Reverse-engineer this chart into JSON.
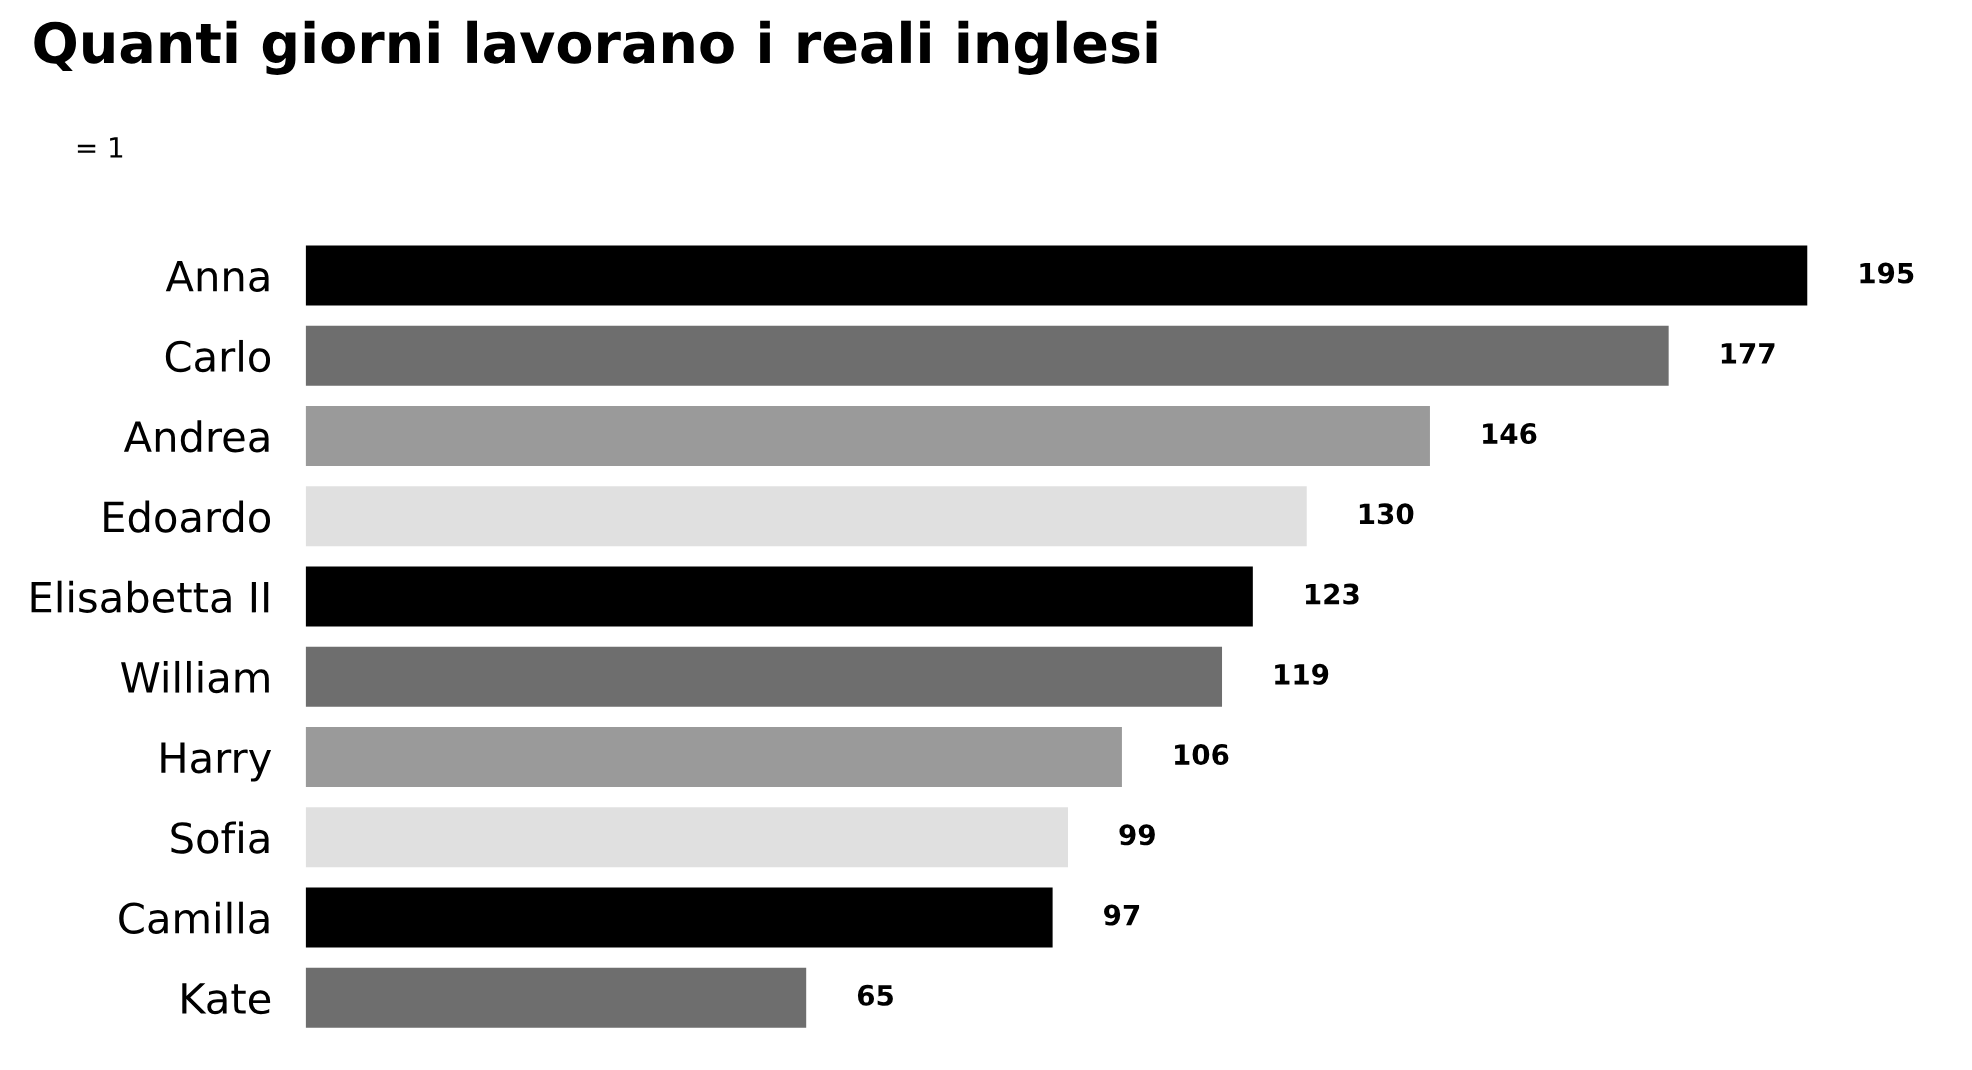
{
  "chart_data": {
    "type": "bar",
    "orientation": "horizontal",
    "title": "Quanti giorni lavorano i reali inglesi",
    "annotations": [
      "= 1"
    ],
    "categories": [
      "Anna",
      "Carlo",
      "Andrea",
      "Edoardo",
      "Elisabetta II",
      "William",
      "Harry",
      "Sofia",
      "Camilla",
      "Kate"
    ],
    "values": [
      195,
      177,
      146,
      130,
      123,
      119,
      106,
      99,
      97,
      65
    ],
    "colors": [
      "#000000",
      "#6e6e6e",
      "#9a9a9a",
      "#e0e0e0",
      "#000000",
      "#6e6e6e",
      "#9a9a9a",
      "#e0e0e0",
      "#000000",
      "#6e6e6e"
    ],
    "data_labels": true,
    "grid": false,
    "legend": false
  }
}
